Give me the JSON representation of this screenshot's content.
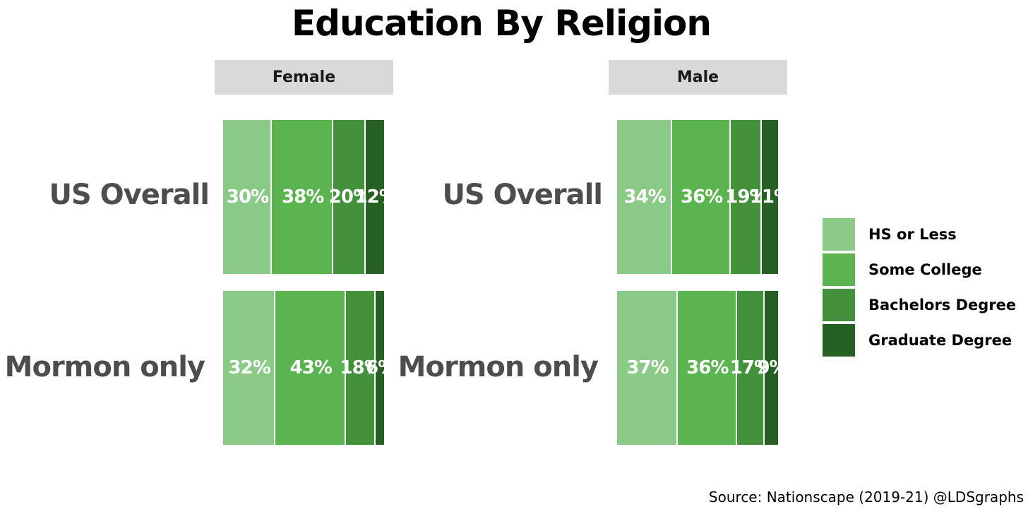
{
  "chart_data": {
    "type": "bar",
    "orientation": "horizontal-stacked-100",
    "title": "Education By Religion",
    "categories": [
      "US Overall",
      "Mormon only"
    ],
    "facets": [
      {
        "name": "Female",
        "series": [
          {
            "name": "HS or Less",
            "values": [
              30,
              32
            ],
            "labels": [
              "30%",
              "32%"
            ]
          },
          {
            "name": "Some College",
            "values": [
              38,
              43
            ],
            "labels": [
              "38%",
              "43%"
            ]
          },
          {
            "name": "Bachelors Degree",
            "values": [
              20,
              18
            ],
            "labels": [
              "20%",
              "18%"
            ]
          },
          {
            "name": "Graduate Degree",
            "values": [
              12,
              6
            ],
            "labels": [
              "12%",
              "6%"
            ]
          }
        ]
      },
      {
        "name": "Male",
        "series": [
          {
            "name": "HS or Less",
            "values": [
              34,
              37
            ],
            "labels": [
              "34%",
              "37%"
            ]
          },
          {
            "name": "Some College",
            "values": [
              36,
              36
            ],
            "labels": [
              "36%",
              "36%"
            ]
          },
          {
            "name": "Bachelors Degree",
            "values": [
              19,
              17
            ],
            "labels": [
              "19%",
              "17%"
            ]
          },
          {
            "name": "Graduate Degree",
            "values": [
              11,
              9
            ],
            "labels": [
              "11%",
              "9%"
            ]
          }
        ]
      }
    ],
    "legend": {
      "position": "right",
      "entries": [
        "HS or Less",
        "Some College",
        "Bachelors Degree",
        "Graduate Degree"
      ]
    },
    "colors": {
      "HS or Less": "#8bc987",
      "Some College": "#5cb450",
      "Bachelors Degree": "#43913a",
      "Graduate Degree": "#266123"
    },
    "grid": false,
    "xlim": [
      0,
      100
    ]
  },
  "source": "Source: Nationscape (2019-21) @LDSgraphs"
}
